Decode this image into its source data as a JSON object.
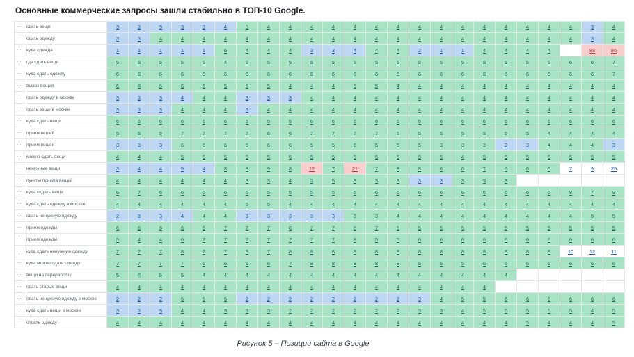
{
  "title": "Основные коммерческие запросы зашли стабильно в ТОП-10 Google.",
  "caption": "Рисунок 5 – Позиции сайта в Google",
  "colors": {
    "b": {
      "bg": "#bdd7f2",
      "text": "#1d5aa8"
    },
    "g": {
      "bg": "#a8e3c5",
      "text": "#1e6e57"
    },
    "r": {
      "bg": "#f7cdce",
      "text": "#b23b3b"
    },
    "w": {
      "bg": "#ffffff",
      "text": "#1d5aa8"
    }
  },
  "table": {
    "row_menu": "⋯",
    "rows": [
      {
        "label": "сдать вещи",
        "cells": [
          "3|b",
          "3|b",
          "3|b",
          "3|b",
          "3|b",
          "4|b",
          "5|g",
          "4|g",
          "4|g",
          "4|g",
          "4|g",
          "4|g",
          "4|g",
          "4|g",
          "4|g",
          "4|g",
          "4|g",
          "4|g",
          "4|g",
          "4|g",
          "4|g",
          "4|g",
          "3|b",
          "4|g"
        ]
      },
      {
        "label": "сдать одежду",
        "cells": [
          "3|b",
          "3|b",
          "4|g",
          "4|g",
          "4|g",
          "4|g",
          "4|g",
          "4|g",
          "4|g",
          "4|g",
          "4|g",
          "4|g",
          "4|g",
          "4|g",
          "4|g",
          "4|g",
          "4|g",
          "4|g",
          "4|g",
          "4|g",
          "4|g",
          "4|g",
          "3|b",
          "4|g"
        ]
      },
      {
        "label": "куда одежда",
        "cells": [
          "1|b",
          "1|b",
          "1|b",
          "1|b",
          "1|b",
          "6|g",
          "4|g",
          "4|g",
          "4|g",
          "3|b",
          "3|b",
          "4|b",
          "4|g",
          "4|g",
          "2|b",
          "1|b",
          "1|b",
          "4|g",
          "4|g",
          "4|g",
          "4|g",
          "|w",
          "88|r",
          "86|r"
        ]
      },
      {
        "label": "где сдать вещи",
        "cells": [
          "5|g",
          "5|g",
          "5|g",
          "5|g",
          "5|g",
          "4|g",
          "5|g",
          "5|g",
          "5|g",
          "5|g",
          "5|g",
          "5|g",
          "5|g",
          "5|g",
          "5|g",
          "5|g",
          "5|g",
          "5|g",
          "5|g",
          "5|g",
          "5|g",
          "6|g",
          "6|g",
          "7|g"
        ]
      },
      {
        "label": "куда сдать одежду",
        "cells": [
          "6|g",
          "6|g",
          "6|g",
          "6|g",
          "6|g",
          "6|g",
          "6|g",
          "6|g",
          "6|g",
          "6|g",
          "6|g",
          "6|g",
          "6|g",
          "6|g",
          "6|g",
          "6|g",
          "6|g",
          "6|g",
          "6|g",
          "6|g",
          "6|g",
          "6|g",
          "6|g",
          "7|g"
        ]
      },
      {
        "label": "вывоз вещей",
        "cells": [
          "6|g",
          "6|g",
          "6|g",
          "6|g",
          "6|g",
          "5|g",
          "5|g",
          "5|g",
          "4|g",
          "4|g",
          "4|g",
          "5|g",
          "5|g",
          "4|g",
          "4|g",
          "4|g",
          "4|g",
          "4|g",
          "4|g",
          "4|g",
          "4|g",
          "4|g",
          "4|g",
          "4|g"
        ]
      },
      {
        "label": "сдать одежду в москве",
        "cells": [
          "3|b",
          "3|b",
          "3|b",
          "4|b",
          "4|g",
          "4|g",
          "3|b",
          "3|b",
          "3|b",
          "4|g",
          "4|g",
          "4|g",
          "4|g",
          "4|g",
          "4|g",
          "4|g",
          "4|g",
          "4|g",
          "4|g",
          "4|g",
          "4|g",
          "4|g",
          "4|g",
          "4|g"
        ]
      },
      {
        "label": "сдать вещи в москве",
        "cells": [
          "3|b",
          "3|b",
          "3|b",
          "4|g",
          "4|g",
          "4|g",
          "3|b",
          "4|g",
          "4|g",
          "4|g",
          "4|g",
          "4|g",
          "4|g",
          "4|g",
          "4|g",
          "4|g",
          "4|g",
          "4|g",
          "4|g",
          "4|g",
          "4|g",
          "4|g",
          "4|g",
          "4|g"
        ]
      },
      {
        "label": "куда сдать вещи",
        "cells": [
          "6|g",
          "6|g",
          "6|g",
          "6|g",
          "6|g",
          "6|g",
          "5|g",
          "5|g",
          "5|g",
          "6|g",
          "6|g",
          "6|g",
          "6|g",
          "5|g",
          "5|g",
          "6|g",
          "6|g",
          "6|g",
          "5|g",
          "6|g",
          "6|g",
          "6|g",
          "6|g",
          "6|g"
        ]
      },
      {
        "label": "прием вещей",
        "cells": [
          "5|g",
          "5|g",
          "5|g",
          "7|g",
          "7|g",
          "7|g",
          "7|g",
          "6|g",
          "6|g",
          "7|g",
          "7|g",
          "7|g",
          "7|g",
          "5|g",
          "5|g",
          "5|g",
          "5|g",
          "5|g",
          "5|g",
          "5|g",
          "4|g",
          "4|g",
          "4|g",
          "4|g"
        ]
      },
      {
        "label": "прием вещей",
        "cells": [
          "3|b",
          "3|b",
          "3|b",
          "6|g",
          "6|g",
          "6|g",
          "6|g",
          "6|g",
          "6|g",
          "5|g",
          "5|g",
          "6|g",
          "5|g",
          "5|g",
          "5|g",
          "3|g",
          "3|g",
          "3|g",
          "2|b",
          "3|b",
          "4|g",
          "4|g",
          "4|g",
          "3|b"
        ]
      },
      {
        "label": "можно сдать вещи",
        "cells": [
          "4|g",
          "4|g",
          "4|g",
          "5|g",
          "5|g",
          "5|g",
          "5|g",
          "5|g",
          "5|g",
          "5|g",
          "5|g",
          "5|g",
          "5|g",
          "5|g",
          "5|g",
          "5|g",
          "4|g",
          "5|g",
          "5|g",
          "5|g",
          "5|g",
          "5|g",
          "5|g",
          "5|g"
        ]
      },
      {
        "label": "ненужные вещи",
        "cells": [
          "3|b",
          "4|b",
          "4|b",
          "5|b",
          "4|b",
          "8|g",
          "8|g",
          "9|g",
          "8|g",
          "12|r",
          "7|g",
          "21|r",
          "7|g",
          "8|g",
          "8|g",
          "6|g",
          "6|g",
          "7|g",
          "6|g",
          "6|g",
          "6|g",
          "7|w",
          "9|w",
          "25|w"
        ]
      },
      {
        "label": "пункты приема вещей",
        "cells": [
          "4|g",
          "4|g",
          "4|g",
          "4|g",
          "4|g",
          "4|g",
          "3|g",
          "3|g",
          "4|g",
          "5|g",
          "5|g",
          "3|g",
          "3|g",
          "3|g",
          "3|b",
          "3|b",
          "3|g",
          "3|g",
          "3|g",
          "|w",
          "|w",
          "|w",
          "|w",
          "|w"
        ]
      },
      {
        "label": "куда отдать вещи",
        "cells": [
          "6|g",
          "7|g",
          "6|g",
          "6|g",
          "6|g",
          "6|g",
          "5|g",
          "5|g",
          "5|g",
          "5|g",
          "5|g",
          "5|g",
          "6|g",
          "6|g",
          "6|g",
          "6|g",
          "6|g",
          "6|g",
          "6|g",
          "6|g",
          "6|g",
          "8|g",
          "7|g",
          "9|g"
        ]
      },
      {
        "label": "куда сдать одежду в москве",
        "cells": [
          "4|g",
          "4|g",
          "4|g",
          "4|g",
          "4|g",
          "4|g",
          "5|g",
          "5|g",
          "4|g",
          "4|g",
          "4|g",
          "4|g",
          "4|g",
          "4|g",
          "4|g",
          "4|g",
          "4|g",
          "4|g",
          "4|g",
          "4|g",
          "4|g",
          "4|g",
          "4|g",
          "4|g"
        ]
      },
      {
        "label": "сдать ненужную одежду",
        "cells": [
          "2|b",
          "3|b",
          "3|b",
          "4|b",
          "4|g",
          "4|g",
          "3|b",
          "3|b",
          "3|b",
          "3|b",
          "3|b",
          "3|g",
          "3|g",
          "4|g",
          "4|g",
          "4|g",
          "4|g",
          "4|g",
          "4|g",
          "4|g",
          "4|g",
          "4|g",
          "5|g",
          "5|g"
        ]
      },
      {
        "label": "прием одежды",
        "cells": [
          "6|g",
          "6|g",
          "6|g",
          "6|g",
          "6|g",
          "7|g",
          "7|g",
          "7|g",
          "8|g",
          "7|g",
          "7|g",
          "8|g",
          "7|g",
          "5|g",
          "5|g",
          "5|g",
          "5|g",
          "5|g",
          "5|g",
          "5|g",
          "5|g",
          "5|g",
          "5|g",
          "5|g"
        ]
      },
      {
        "label": "прием одежды",
        "cells": [
          "5|g",
          "4|g",
          "4|g",
          "6|g",
          "7|g",
          "7|g",
          "7|g",
          "7|g",
          "7|g",
          "7|g",
          "7|g",
          "8|g",
          "5|g",
          "5|g",
          "6|g",
          "6|g",
          "6|g",
          "6|g",
          "6|g",
          "6|g",
          "6|g",
          "6|g",
          "6|g",
          "6|g"
        ]
      },
      {
        "label": "куда сдать ненужную одежду",
        "cells": [
          "7|g",
          "7|g",
          "7|g",
          "8|g",
          "7|g",
          "7|g",
          "9|g",
          "7|g",
          "8|g",
          "8|g",
          "8|g",
          "8|g",
          "8|g",
          "8|g",
          "8|g",
          "8|g",
          "8|g",
          "8|g",
          "8|g",
          "8|g",
          "8|g",
          "10|w",
          "12|w",
          "11|w"
        ]
      },
      {
        "label": "куда можно сдать одежду",
        "cells": [
          "7|g",
          "7|g",
          "7|g",
          "7|g",
          "6|g",
          "6|g",
          "6|g",
          "6|g",
          "7|g",
          "8|g",
          "8|g",
          "8|g",
          "8|g",
          "8|g",
          "5|g",
          "5|g",
          "5|g",
          "6|g",
          "6|g",
          "6|g",
          "6|g",
          "6|g",
          "6|g",
          "6|g"
        ]
      },
      {
        "label": "вещи на переработку",
        "cells": [
          "5|g",
          "6|g",
          "5|g",
          "5|g",
          "4|g",
          "4|g",
          "4|g",
          "4|g",
          "4|g",
          "4|g",
          "4|g",
          "4|g",
          "4|g",
          "4|g",
          "4|g",
          "4|g",
          "4|g",
          "4|g",
          "4|g",
          "|w",
          "|w",
          "|w",
          "|w",
          "|w"
        ]
      },
      {
        "label": "сдать старые вещи",
        "cells": [
          "4|g",
          "4|g",
          "4|g",
          "4|g",
          "4|g",
          "4|g",
          "4|g",
          "4|g",
          "4|g",
          "4|g",
          "4|g",
          "4|g",
          "4|g",
          "4|g",
          "4|g",
          "4|g",
          "4|g",
          "4|g",
          "|w",
          "|w",
          "|w",
          "|w",
          "|w",
          "|w"
        ]
      },
      {
        "label": "сдать ненужную одежду в москве",
        "cells": [
          "2|b",
          "2|b",
          "2|b",
          "5|g",
          "5|g",
          "5|g",
          "2|b",
          "2|b",
          "2|b",
          "2|b",
          "2|b",
          "2|b",
          "2|b",
          "2|b",
          "3|b",
          "4|g",
          "5|g",
          "5|g",
          "6|g",
          "6|g",
          "6|g",
          "6|g",
          "6|g",
          "6|g"
        ]
      },
      {
        "label": "куда сдать вещи в москве",
        "cells": [
          "3|b",
          "3|b",
          "3|b",
          "4|g",
          "4|g",
          "3|g",
          "3|g",
          "3|g",
          "2|g",
          "2|g",
          "2|g",
          "2|g",
          "2|g",
          "2|g",
          "3|g",
          "3|g",
          "4|g",
          "5|g",
          "5|g",
          "5|g",
          "5|g",
          "5|g",
          "4|g",
          "5|g"
        ]
      },
      {
        "label": "отдать одежду",
        "cells": [
          "4|g",
          "4|g",
          "4|g",
          "4|g",
          "4|g",
          "4|g",
          "4|g",
          "4|g",
          "4|g",
          "4|g",
          "4|g",
          "4|g",
          "4|g",
          "4|g",
          "4|g",
          "4|g",
          "4|g",
          "4|g",
          "4|g",
          "5|g",
          "4|g",
          "4|g",
          "4|g",
          "5|g"
        ]
      }
    ]
  }
}
